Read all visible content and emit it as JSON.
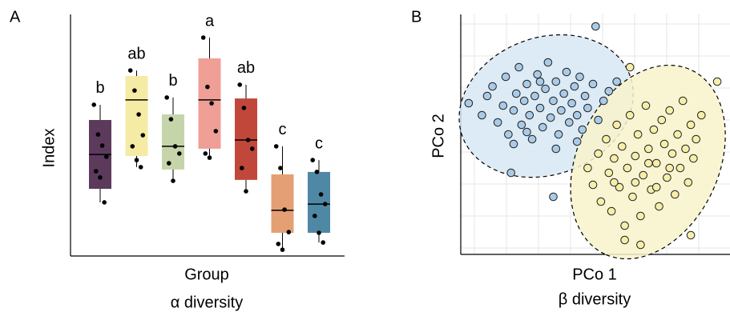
{
  "chart_data": [
    {
      "type": "box",
      "panel": "A",
      "ylabel": "Index",
      "xlabel": "Group",
      "caption": "α diversity",
      "ylim": [
        0,
        100
      ],
      "boxes": [
        {
          "letter": "b",
          "color": "#5b3a5c",
          "min": 22.2,
          "q1": 27.8,
          "median": 42,
          "q3": 56.3,
          "max": 62.6,
          "points": [
            62.6,
            50.3,
            45.7,
            41.1,
            35.1,
            32.5,
            22.2
          ]
        },
        {
          "letter": "ab",
          "color": "#f6eba4",
          "min": 36.8,
          "q1": 41.4,
          "median": 64.6,
          "q3": 74.5,
          "max": 76.8,
          "points": [
            76.8,
            68.5,
            58.6,
            50,
            45.4,
            39.7,
            36.8
          ]
        },
        {
          "letter": "b",
          "color": "#c5d5a9",
          "min": 31.1,
          "q1": 35.8,
          "median": 45.4,
          "q3": 58.6,
          "max": 65.6,
          "points": [
            65.6,
            56.6,
            45.4,
            42.4,
            38.4,
            31.1
          ]
        },
        {
          "letter": "a",
          "color": "#ef9f96",
          "min": 40.7,
          "q1": 44.4,
          "median": 64.6,
          "q3": 81.8,
          "max": 90.4,
          "points": [
            90.4,
            70,
            63.2,
            51.7,
            42.4,
            40.7
          ]
        },
        {
          "letter": "ab",
          "color": "#c1473b",
          "min": 26.8,
          "q1": 31.5,
          "median": 48,
          "q3": 65.2,
          "max": 70.9,
          "points": [
            70.9,
            61.3,
            48,
            44.4,
            36.4,
            26.8
          ]
        },
        {
          "letter": "c",
          "color": "#e4a074",
          "min": 2.6,
          "q1": 9.6,
          "median": 18.9,
          "q3": 33.8,
          "max": 45.4,
          "points": [
            45.4,
            36.4,
            19.2,
            9.9,
            5,
            2.6
          ]
        },
        {
          "letter": "c",
          "color": "#4f88a4",
          "min": 5.6,
          "q1": 9.6,
          "median": 21.5,
          "q3": 34.8,
          "max": 39.7,
          "points": [
            39.7,
            34.8,
            25.5,
            21.5,
            16.6,
            9.6,
            5.6
          ]
        }
      ]
    },
    {
      "type": "scatter",
      "panel": "B",
      "xlabel": "PCo 1",
      "ylabel": "PCo 2",
      "caption": "β diversity",
      "xlim": [
        0,
        100
      ],
      "ylim": [
        0,
        100
      ],
      "grid": true,
      "series": [
        {
          "color": "#a9cbe8",
          "fill": "#d7e7f5",
          "x": [
            3,
            8,
            10,
            12,
            14,
            16,
            17,
            18,
            20,
            21,
            22,
            23,
            24,
            25,
            26,
            27,
            28,
            29,
            30,
            31,
            32,
            33,
            34,
            35,
            36,
            37,
            38,
            39,
            40,
            41,
            42,
            43,
            44,
            45,
            46,
            47,
            48,
            50,
            52,
            54,
            56,
            59,
            44,
            36,
            20,
            51,
            19,
            35,
            25,
            30
          ],
          "values": [
            63,
            58,
            66,
            70,
            55,
            62,
            74,
            50,
            60,
            67,
            78,
            54,
            64,
            71,
            58,
            48,
            66,
            75,
            61,
            53,
            69,
            80,
            57,
            64,
            72,
            50,
            60,
            67,
            76,
            55,
            63,
            70,
            58,
            74,
            52,
            66,
            61,
            71,
            56,
            64,
            68,
            72,
            47,
            44,
            46,
            95,
            34,
            24,
            51,
            72
          ]
        },
        {
          "color": "#f7eeaa",
          "fill": "#f8f3cb",
          "x": [
            48,
            50,
            52,
            53,
            55,
            56,
            57,
            58,
            59,
            60,
            61,
            62,
            63,
            64,
            65,
            66,
            67,
            68,
            69,
            70,
            71,
            72,
            73,
            74,
            75,
            76,
            77,
            78,
            79,
            80,
            81,
            82,
            83,
            84,
            85,
            86,
            87,
            88,
            89,
            91,
            62,
            68,
            87,
            64,
            97,
            74,
            66,
            79,
            71,
            58
          ],
          "values": [
            36,
            29,
            42,
            22,
            48,
            34,
            18,
            40,
            54,
            28,
            45,
            12,
            36,
            58,
            24,
            41,
            50,
            16,
            33,
            62,
            44,
            27,
            52,
            38,
            20,
            56,
            46,
            32,
            60,
            42,
            25,
            50,
            36,
            64,
            44,
            30,
            54,
            40,
            48,
            58,
            6,
            4,
            8,
            78,
            72,
            28,
            30,
            36,
            38,
            30
          ]
        }
      ]
    }
  ]
}
